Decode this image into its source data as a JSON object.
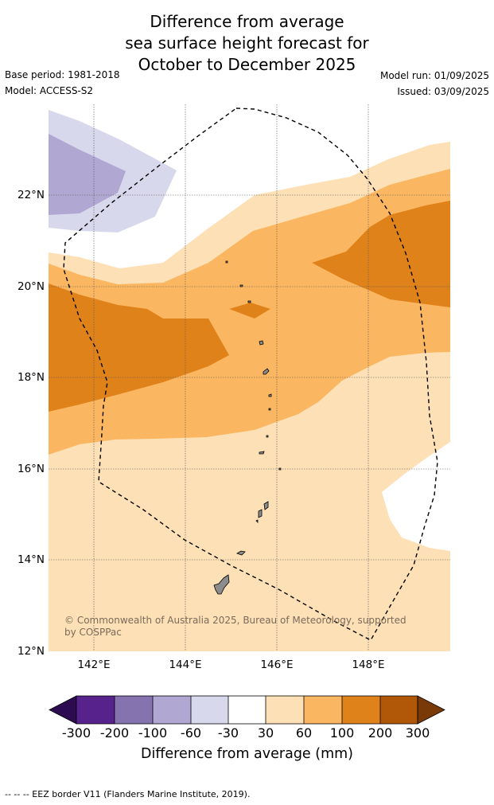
{
  "title_lines": [
    "Difference from average",
    "sea surface height forecast for",
    "October to December 2025"
  ],
  "base_period": "Base period: 1981-2018",
  "model": "Model: ACCESS-S2",
  "model_run": "Model run: 01/09/2025",
  "issued": "Issued: 03/09/2025",
  "map": {
    "lat_labels": [
      "22°N",
      "20°N",
      "18°N",
      "16°N",
      "14°N",
      "12°N"
    ],
    "lon_labels": [
      "142°E",
      "144°E",
      "146°E",
      "148°E"
    ],
    "lon_range": [
      141,
      149.8
    ],
    "lat_range": [
      12,
      23.9
    ],
    "credit": "© Commonwealth of Australia 2025, Bureau of Meteorology, supported by COSPPac"
  },
  "colorbar": {
    "ticks": [
      "-300",
      "-200",
      "-100",
      "-60",
      "-30",
      "30",
      "60",
      "100",
      "200",
      "300"
    ],
    "colors": [
      "#2d0b50",
      "#57228b",
      "#8573b0",
      "#b0a8d2",
      "#d8d8ec",
      "#ffffff",
      "#fde0b5",
      "#fbb661",
      "#e0821a",
      "#b05808",
      "#7a3a08"
    ],
    "label": "Difference from average (mm)"
  },
  "footer": "--  --  -- EEZ border V11 (Flanders Marine Institute, 2019)."
}
